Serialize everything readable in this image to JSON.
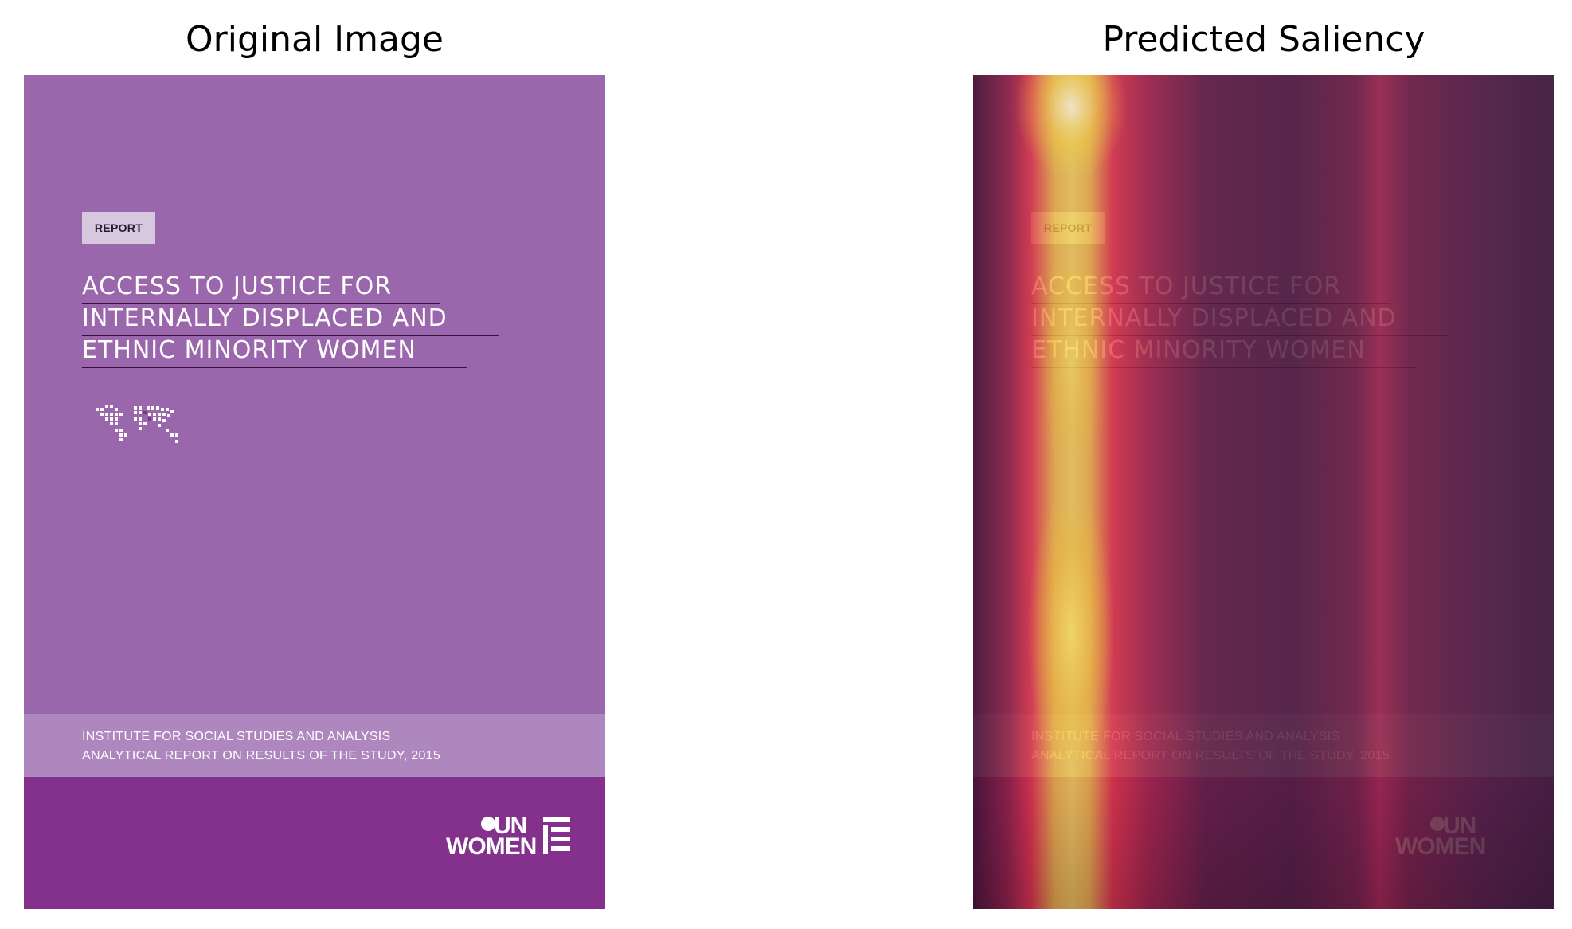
{
  "figure": {
    "left_title": "Original Image",
    "right_title": "Predicted Saliency"
  },
  "cover": {
    "badge": "REPORT",
    "title_lines": [
      "ACCESS TO JUSTICE FOR",
      "INTERNALLY DISPLACED AND",
      "ETHNIC MINORITY WOMEN"
    ],
    "band_lines": [
      "INSTITUTE FOR SOCIAL STUDIES AND ANALYSIS",
      "ANALYTICAL REPORT ON RESULTS OF THE STUDY, 2015"
    ],
    "logo_top": "UN",
    "logo_bottom": "WOMEN",
    "colors": {
      "top": "#9a66ac",
      "band": "#ae87be",
      "bottom": "#84318e"
    }
  },
  "icons": [
    "world-map-icon",
    "un-women-logo-icon"
  ]
}
